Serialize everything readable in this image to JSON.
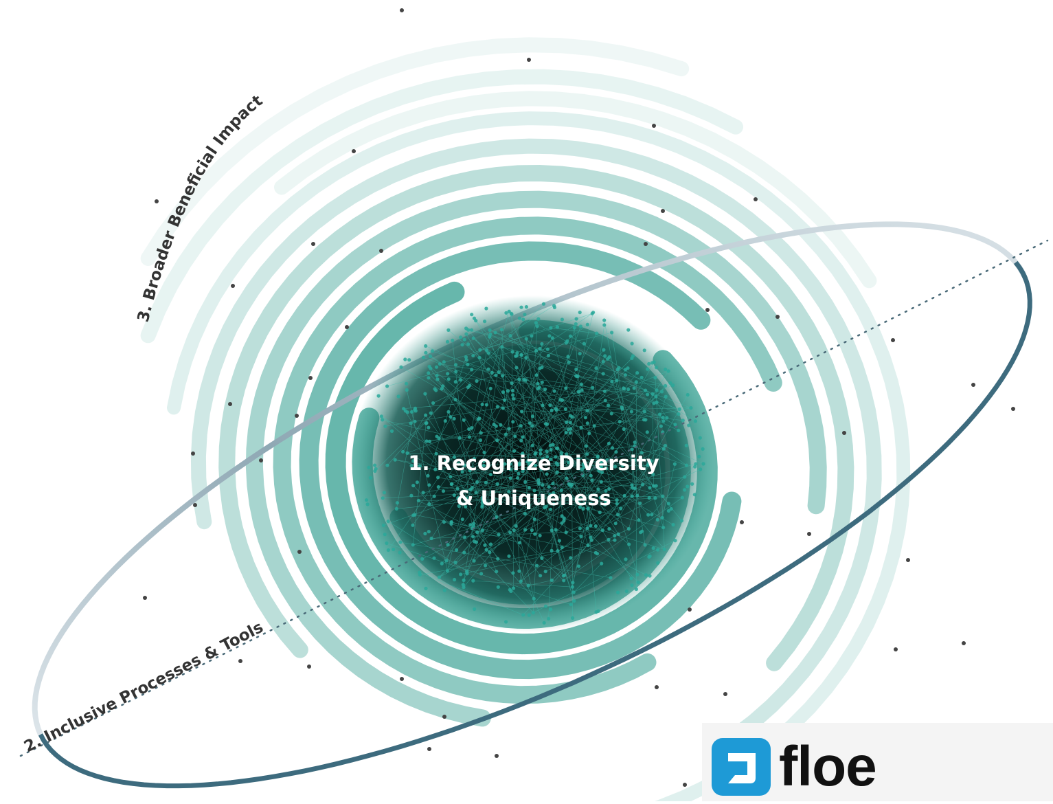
{
  "labels": {
    "center_line1": "1. Recognize Diversity",
    "center_line2": "& Uniqueness",
    "ring2": "2. Inclusive Processes & Tools",
    "ring3": "3. Broader Beneficial Impact"
  },
  "logo": {
    "text": "floe",
    "icon": "floe-logo-icon"
  },
  "colors": {
    "background": "#ffffff",
    "spiral": "#5fb3a8",
    "core": "#06201d",
    "node": "#2aa89a",
    "orbit_ring": "#3d6b7e",
    "dot": "#444444"
  }
}
